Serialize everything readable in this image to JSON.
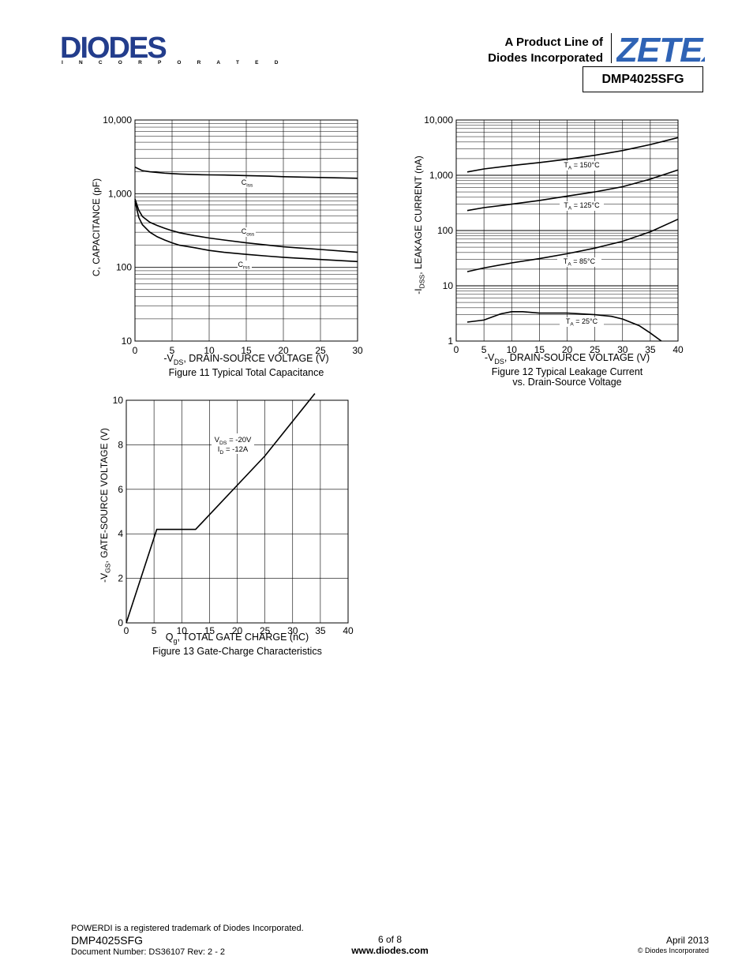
{
  "header": {
    "company_logo": "DIODES",
    "company_sub": "I N C O R P O R A T E D",
    "product_line_1": "A Product Line of",
    "product_line_2": "Diodes Incorporated",
    "zetex_logo": "ZETEX",
    "part_number": "DMP4025SFG"
  },
  "footer": {
    "trademark": "POWERDI is a registered trademark of Diodes Incorporated.",
    "part_number": "DMP4025SFG",
    "doc_number": "Document Number: DS36107 Rev: 2 - 2",
    "page": "6 of 8",
    "website": "www.diodes.com",
    "date": "April 2013",
    "copyright": "© Diodes Incorporated"
  },
  "chart_data": [
    {
      "type": "line",
      "title": "Figure 11 Typical Total Capacitance",
      "xlabel_pre": "-V",
      "xlabel_sub": "DS",
      "xlabel_post": ", DRAIN-SOURCE VOLTAGE (V)",
      "ylabel": "C, CAPACITANCE (pF)",
      "yscale": "log",
      "xlim": [
        0,
        30
      ],
      "ylim": [
        10,
        10000
      ],
      "xticks": [
        "0",
        "5",
        "10",
        "15",
        "20",
        "25",
        "30"
      ],
      "yticks": [
        "10",
        "100",
        "1,000",
        "10,000"
      ],
      "series": [
        {
          "name": "Ciss",
          "label_main": "C",
          "label_sub": "iss",
          "x": [
            0,
            1,
            2,
            4,
            6,
            8,
            10,
            12,
            15,
            18,
            20,
            25,
            30
          ],
          "values": [
            2300,
            2050,
            1980,
            1900,
            1850,
            1820,
            1800,
            1790,
            1760,
            1730,
            1700,
            1660,
            1620
          ]
        },
        {
          "name": "Coss",
          "label_main": "C",
          "label_sub": "oss",
          "x": [
            0,
            0.5,
            1,
            2,
            3,
            4,
            5,
            6,
            8,
            10,
            12,
            15,
            18,
            20,
            25,
            30
          ],
          "values": [
            850,
            600,
            490,
            410,
            370,
            340,
            315,
            295,
            270,
            250,
            235,
            215,
            200,
            190,
            175,
            160
          ]
        },
        {
          "name": "Crss",
          "label_main": "C",
          "label_sub": "rss",
          "x": [
            0,
            0.5,
            1,
            2,
            3,
            4,
            5,
            6,
            8,
            10,
            12,
            15,
            18,
            20,
            25,
            30
          ],
          "values": [
            800,
            480,
            380,
            300,
            260,
            235,
            215,
            200,
            185,
            170,
            160,
            150,
            142,
            137,
            128,
            120
          ]
        }
      ]
    },
    {
      "type": "line",
      "title": "Figure 12 Typical Leakage Current",
      "title2": "vs. Drain-Source Voltage",
      "xlabel_pre": "-V",
      "xlabel_sub": "DS",
      "xlabel_post": ", DRAIN-SOURCE VOLTAGE (V)",
      "ylabel_pre": "-I",
      "ylabel_sub": "DSS",
      "ylabel_post": ", LEAKAGE CURRENT (nA)",
      "yscale": "log",
      "xlim": [
        0,
        40
      ],
      "ylim": [
        1,
        10000
      ],
      "xticks": [
        "0",
        "5",
        "10",
        "15",
        "20",
        "25",
        "30",
        "35",
        "40"
      ],
      "yticks": [
        "1",
        "10",
        "100",
        "1,000",
        "10,000"
      ],
      "series": [
        {
          "name": "TA = 150°C",
          "label_main": "T",
          "label_sub": "A",
          "label_post": " = 150°C",
          "x": [
            2,
            5,
            10,
            15,
            20,
            25,
            30,
            35,
            40
          ],
          "values": [
            1150,
            1300,
            1500,
            1700,
            1950,
            2300,
            2800,
            3600,
            4800
          ]
        },
        {
          "name": "TA = 125°C",
          "label_main": "T",
          "label_sub": "A",
          "label_post": " = 125°C",
          "x": [
            2,
            5,
            10,
            15,
            20,
            25,
            30,
            35,
            40
          ],
          "values": [
            230,
            260,
            300,
            350,
            420,
            500,
            620,
            850,
            1250
          ]
        },
        {
          "name": "TA = 85°C",
          "label_main": "T",
          "label_sub": "A",
          "label_post": " = 85°C",
          "x": [
            2,
            5,
            10,
            15,
            20,
            25,
            30,
            35,
            40
          ],
          "values": [
            18,
            21,
            26,
            31,
            38,
            48,
            64,
            95,
            160
          ]
        },
        {
          "name": "TA = 25°C",
          "label_main": "T",
          "label_sub": "A",
          "label_post": " = 25°C",
          "x": [
            2,
            5,
            8,
            10,
            12,
            15,
            20,
            25,
            28,
            30,
            33,
            35,
            37
          ],
          "values": [
            2.2,
            2.4,
            3.1,
            3.4,
            3.4,
            3.2,
            3.2,
            3.0,
            2.8,
            2.5,
            1.9,
            1.4,
            1.0
          ]
        }
      ]
    },
    {
      "type": "line",
      "title": "Figure 13 Gate-Charge Characteristics",
      "xlabel_pre": "Q",
      "xlabel_sub": "g",
      "xlabel_post": ", TOTAL GATE CHARGE (nC)",
      "ylabel_pre": "-V",
      "ylabel_sub": "GS",
      "ylabel_post": ", GATE-SOURCE VOLTAGE (V)",
      "yscale": "linear",
      "xlim": [
        0,
        40
      ],
      "ylim": [
        0,
        10
      ],
      "xticks": [
        "0",
        "5",
        "10",
        "15",
        "20",
        "25",
        "30",
        "35",
        "40"
      ],
      "yticks": [
        "0",
        "2",
        "4",
        "6",
        "8",
        "10"
      ],
      "annotation_line1_main": "V",
      "annotation_line1_sub": "DS",
      "annotation_line1_post": " = -20V",
      "annotation_line2_main": "I",
      "annotation_line2_sub": "D",
      "annotation_line2_post": " = -12A",
      "series": [
        {
          "name": "VGS",
          "x": [
            0,
            5.5,
            12.5,
            25,
            34
          ],
          "values": [
            0,
            4.2,
            4.2,
            7.5,
            10.3
          ]
        }
      ]
    }
  ]
}
